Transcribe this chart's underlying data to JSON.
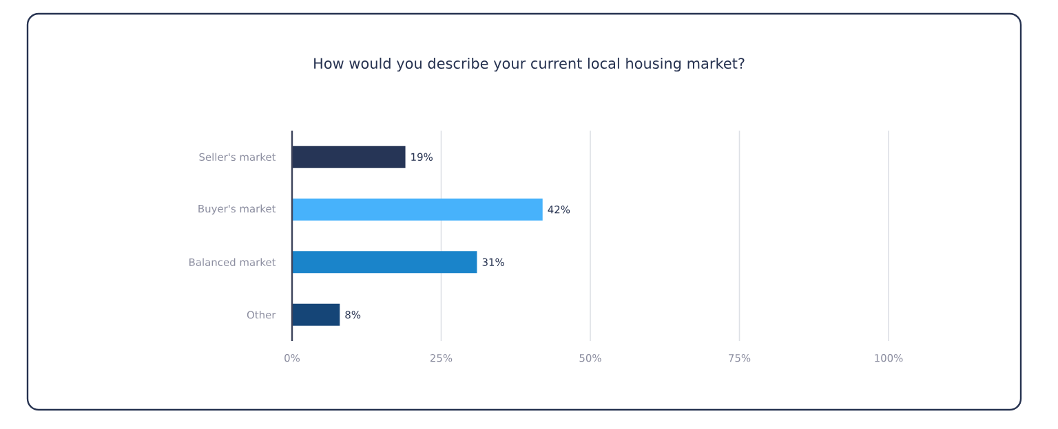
{
  "chart_data": {
    "type": "bar",
    "orientation": "horizontal",
    "title": "How would you describe your current local housing market?",
    "categories": [
      "Seller's market",
      "Buyer's market",
      "Balanced market",
      "Other"
    ],
    "values": [
      19,
      42,
      31,
      8
    ],
    "colors": [
      "#263556",
      "#47b2fb",
      "#1a84ca",
      "#154577"
    ],
    "value_labels": [
      "19%",
      "42%",
      "31%",
      "8%"
    ],
    "xlim": [
      0,
      100
    ],
    "xticks": [
      {
        "value": 0,
        "label": "0%"
      },
      {
        "value": 25,
        "label": "25%"
      },
      {
        "value": 50,
        "label": "50%"
      },
      {
        "value": 75,
        "label": "75%"
      },
      {
        "value": 100,
        "label": "100%"
      }
    ],
    "grid": "x",
    "legend": false
  }
}
